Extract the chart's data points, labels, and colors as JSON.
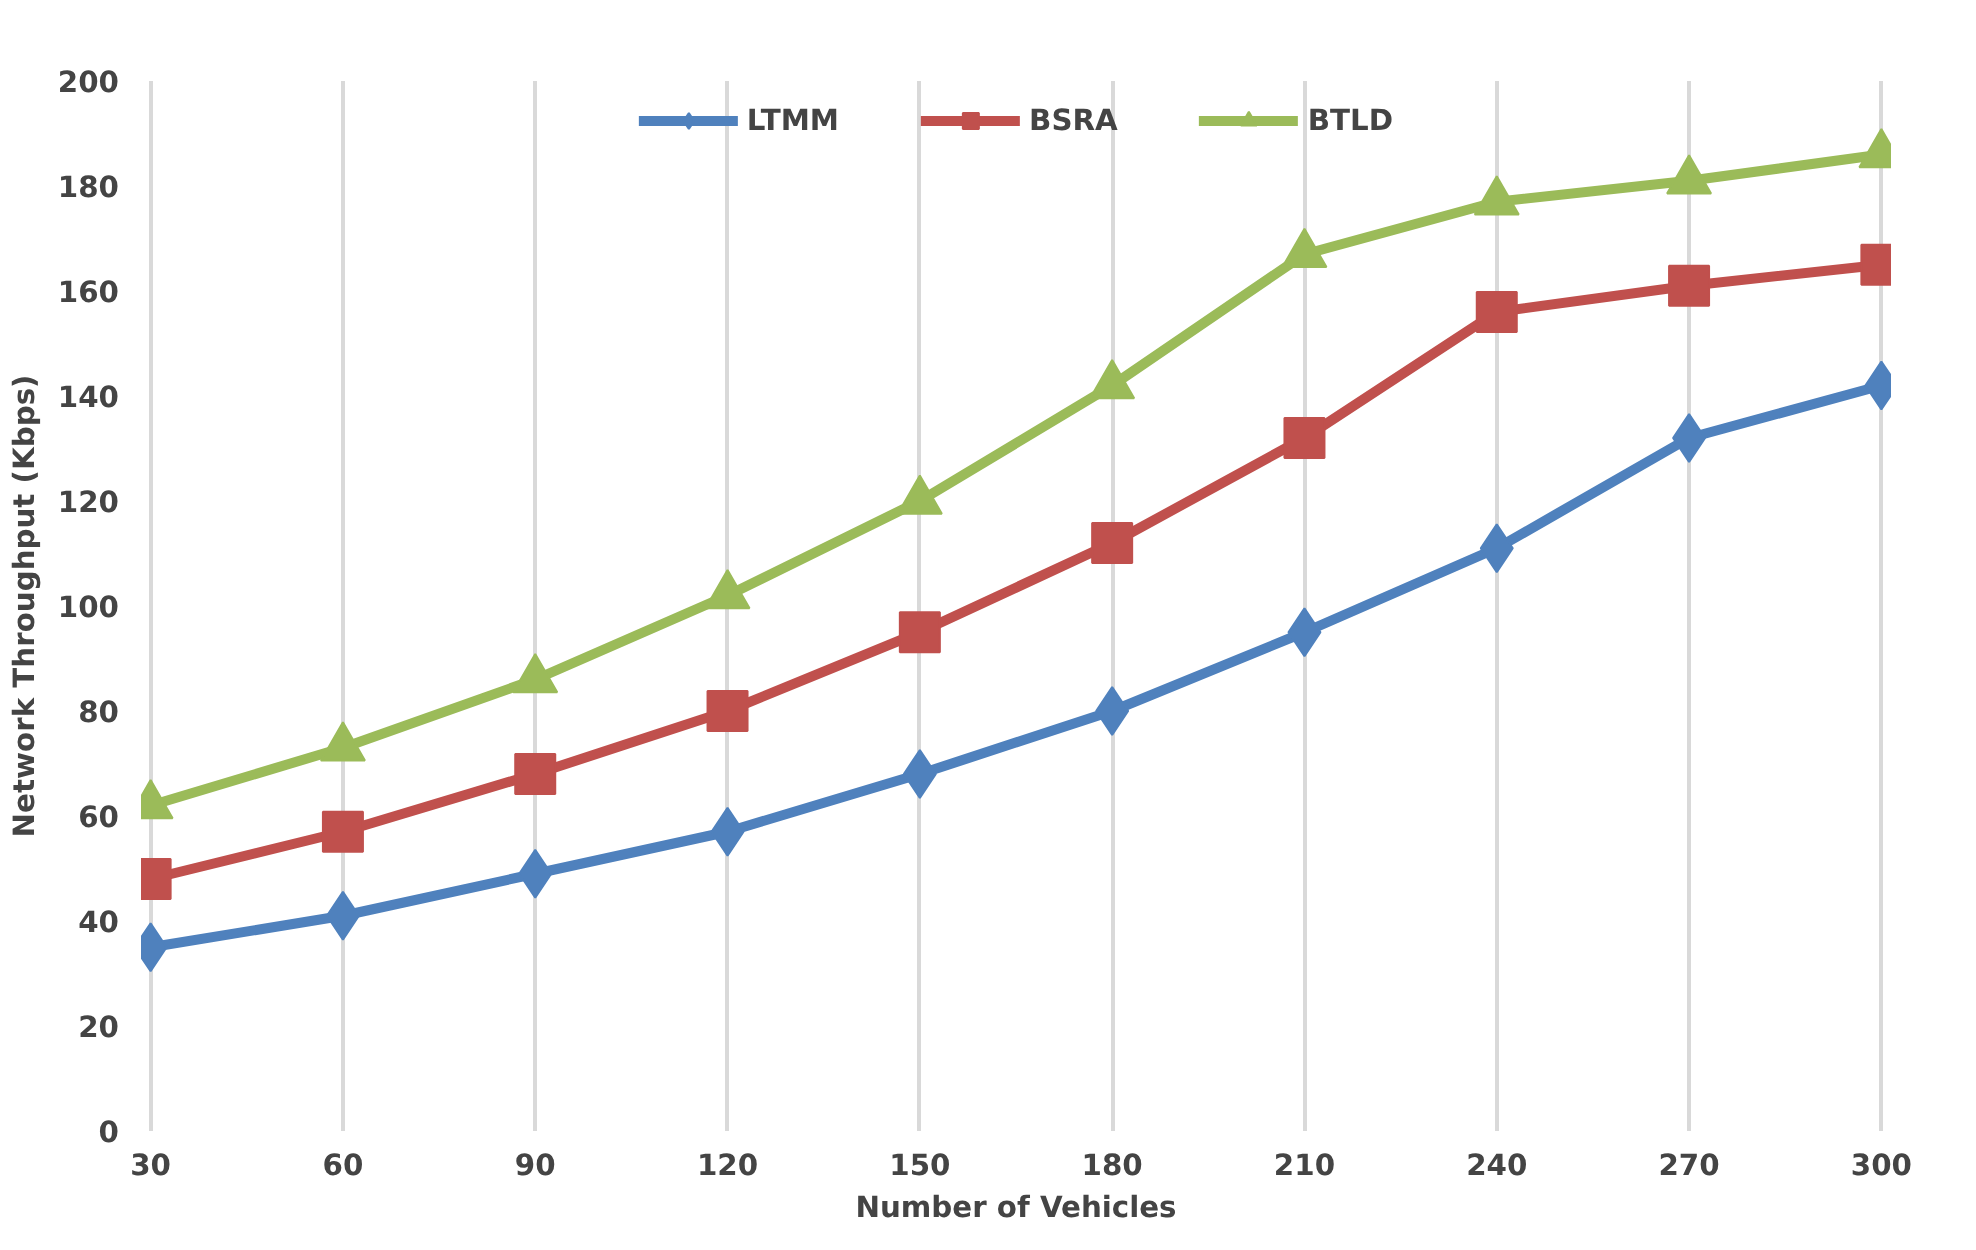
{
  "chart_data": {
    "type": "line",
    "xlabel": "Number of Vehicles",
    "ylabel": "Network Throughput (Kbps)",
    "categories": [
      "30",
      "60",
      "90",
      "120",
      "150",
      "180",
      "210",
      "240",
      "270",
      "300"
    ],
    "series": [
      {
        "name": "LTMM",
        "color": "#4f81bd",
        "marker": "diamond",
        "values": [
          35,
          41,
          49,
          57,
          68,
          80,
          95,
          111,
          132,
          142
        ]
      },
      {
        "name": "BSRA",
        "color": "#c0504d",
        "marker": "square",
        "values": [
          48,
          57,
          68,
          80,
          95,
          112,
          132,
          156,
          161,
          165
        ]
      },
      {
        "name": "BTLD",
        "color": "#9bbb59",
        "marker": "triangle",
        "values": [
          62,
          73,
          86,
          102,
          120,
          142,
          167,
          177,
          181,
          186
        ]
      }
    ],
    "ylim": [
      0,
      200
    ],
    "yticks": [
      0,
      20,
      40,
      60,
      80,
      100,
      120,
      140,
      160,
      180,
      200
    ],
    "grid": "x",
    "legend": "top",
    "line_style": "solid"
  }
}
